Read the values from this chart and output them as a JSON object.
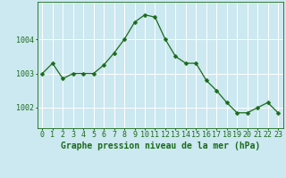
{
  "x": [
    0,
    1,
    2,
    3,
    4,
    5,
    6,
    7,
    8,
    9,
    10,
    11,
    12,
    13,
    14,
    15,
    16,
    17,
    18,
    19,
    20,
    21,
    22,
    23
  ],
  "y": [
    1003.0,
    1003.3,
    1002.85,
    1003.0,
    1003.0,
    1003.0,
    1003.25,
    1003.6,
    1004.0,
    1004.5,
    1004.72,
    1004.65,
    1004.0,
    1003.5,
    1003.3,
    1003.3,
    1002.8,
    1002.5,
    1002.15,
    1001.85,
    1001.85,
    1002.0,
    1002.15,
    1001.85
  ],
  "line_color": "#1a6b1a",
  "marker": "D",
  "marker_size": 2.5,
  "bg_color": "#cce8f0",
  "grid_color": "#ffffff",
  "xlabel": "Graphe pression niveau de la mer (hPa)",
  "xlabel_fontsize": 7.0,
  "tick_fontsize": 6.0,
  "ytick_labels": [
    "1002",
    "1003",
    "1004"
  ],
  "ytick_values": [
    1002,
    1003,
    1004
  ],
  "ylim": [
    1001.4,
    1005.1
  ],
  "xlim": [
    -0.5,
    23.5
  ],
  "xtick_labels": [
    "0",
    "1",
    "2",
    "3",
    "4",
    "5",
    "6",
    "7",
    "8",
    "9",
    "10",
    "11",
    "12",
    "13",
    "14",
    "15",
    "16",
    "17",
    "18",
    "19",
    "20",
    "21",
    "22",
    "23"
  ]
}
